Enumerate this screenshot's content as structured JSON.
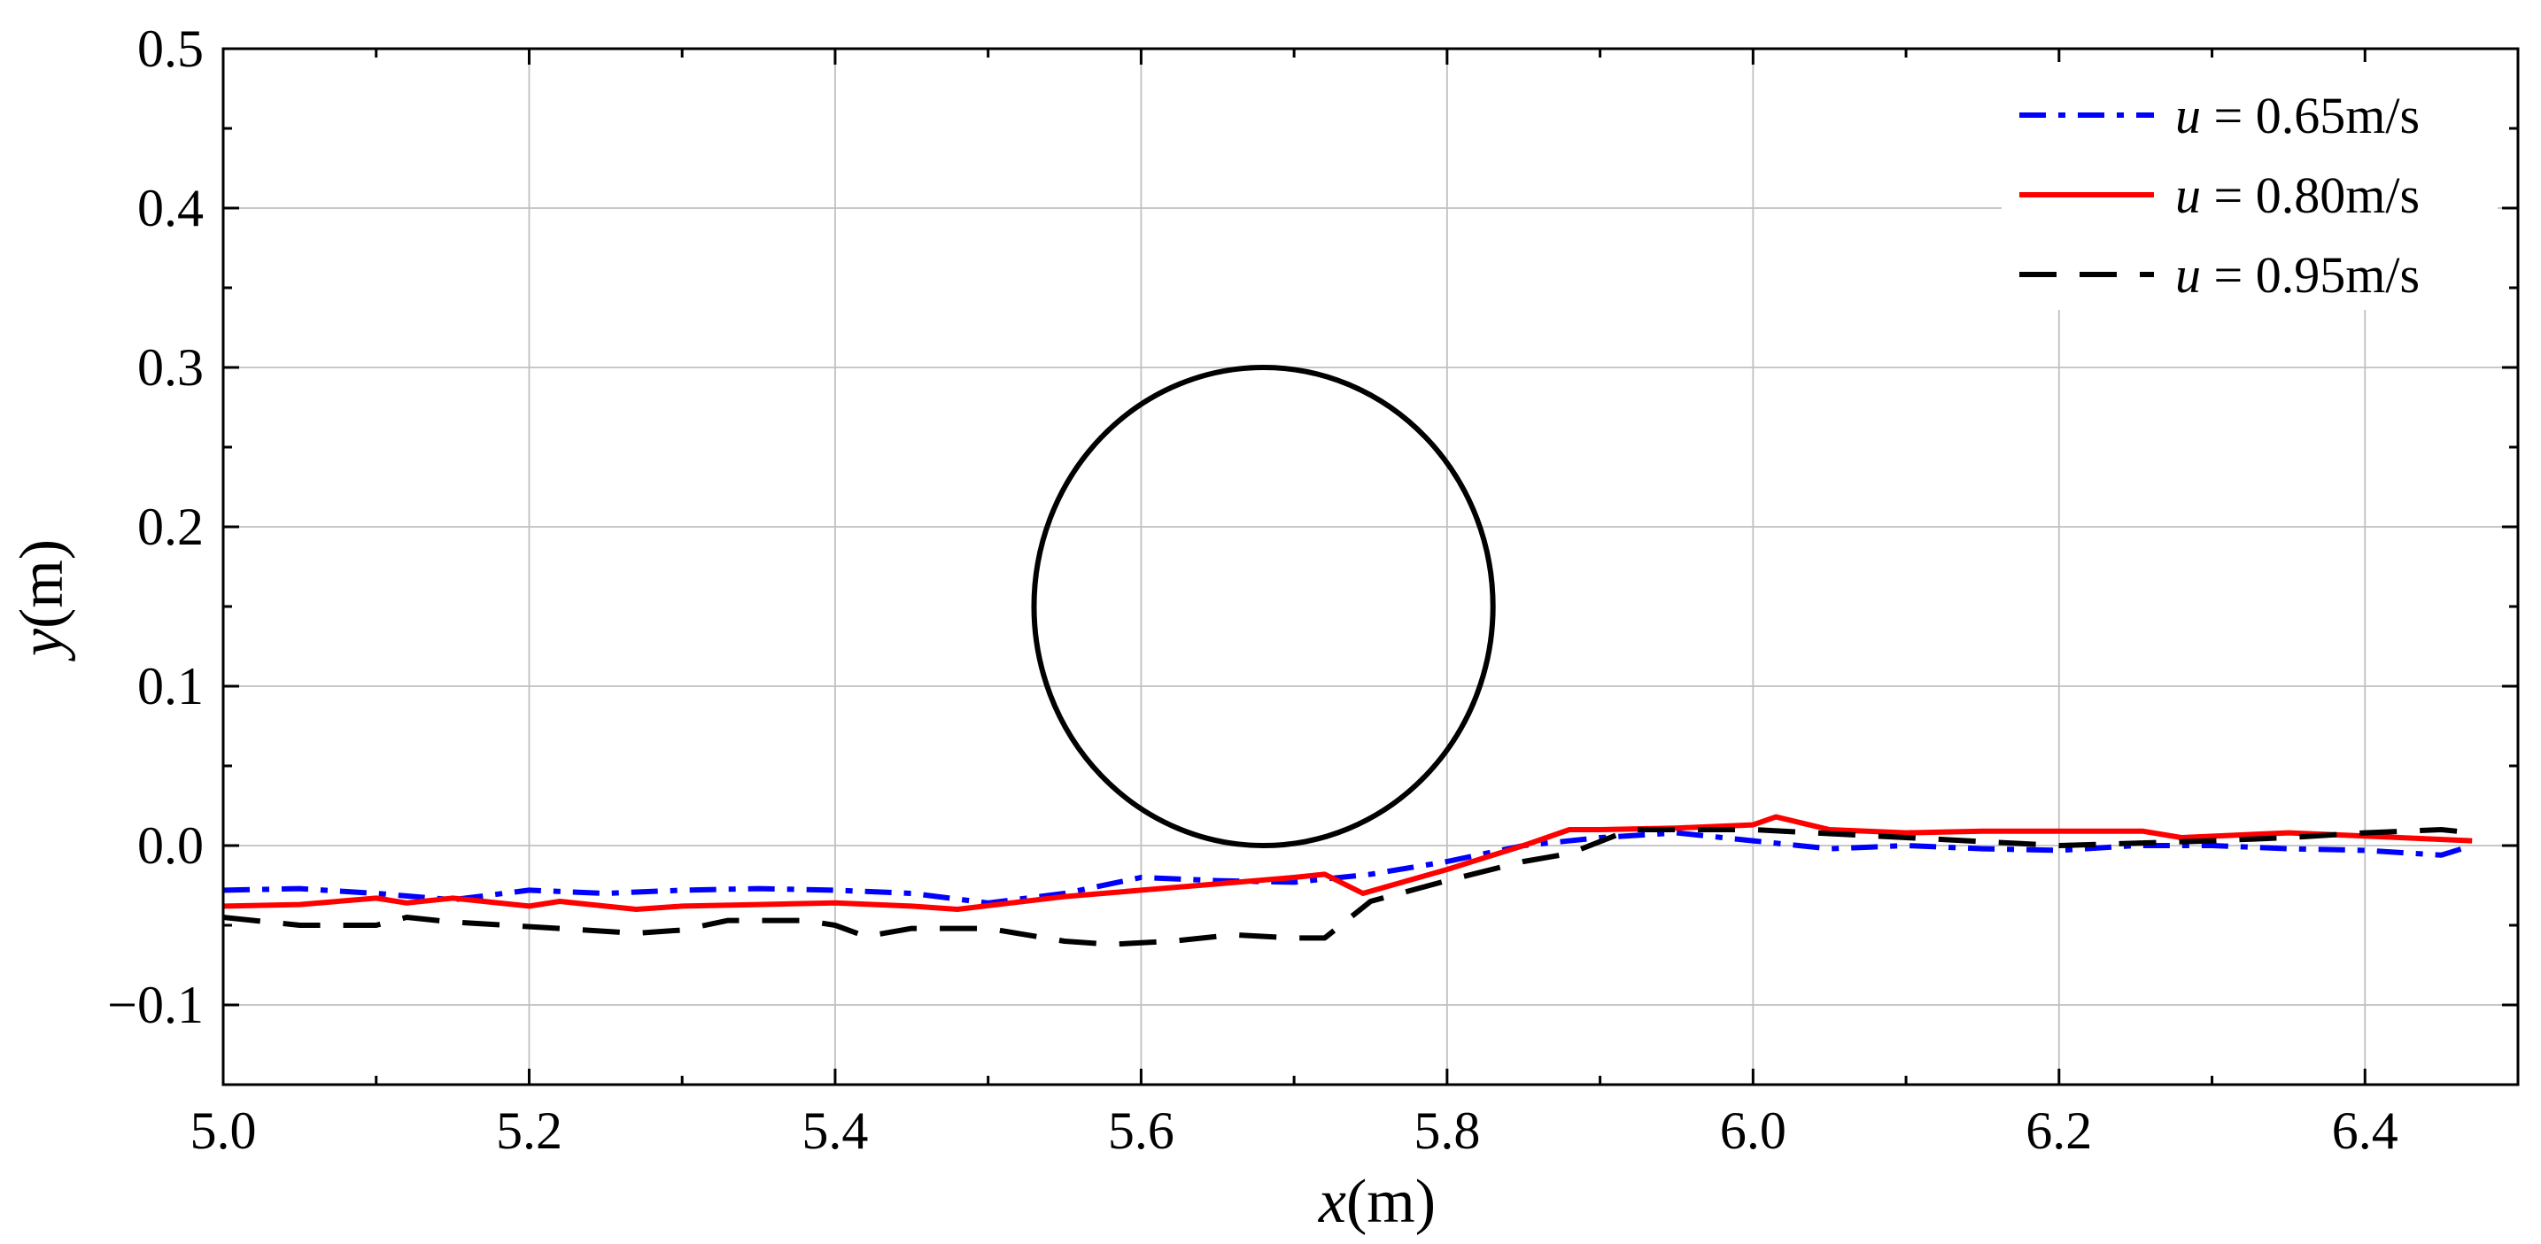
{
  "chart_data": {
    "type": "line",
    "xlabel_var": "x",
    "xlabel_unit": "(m)",
    "ylabel_var": "y",
    "ylabel_unit": "(m)",
    "xlim": [
      5.0,
      6.5
    ],
    "ylim": [
      -0.15,
      0.5
    ],
    "x_ticks": [
      5.0,
      5.2,
      5.4,
      5.6,
      5.8,
      6.0,
      6.2,
      6.4
    ],
    "x_tick_labels": [
      "5.0",
      "5.2",
      "5.4",
      "5.6",
      "5.8",
      "6.0",
      "6.2",
      "6.4"
    ],
    "y_ticks": [
      -0.1,
      0.0,
      0.1,
      0.2,
      0.3,
      0.4,
      0.5
    ],
    "y_tick_labels": [
      "−0.1",
      "0.0",
      "0.1",
      "0.2",
      "0.3",
      "0.4",
      "0.5"
    ],
    "grid": true,
    "legend_position": "top-right",
    "circle": {
      "cx": 5.68,
      "cy": 0.15,
      "r": 0.15,
      "color": "#000000"
    },
    "series": [
      {
        "name_var": "u",
        "name_value": " = 0.65m/s",
        "color": "#0000ff",
        "style": "dashdot",
        "x": [
          5.0,
          5.05,
          5.1,
          5.15,
          5.2,
          5.25,
          5.3,
          5.35,
          5.4,
          5.45,
          5.5,
          5.55,
          5.6,
          5.65,
          5.7,
          5.75,
          5.8,
          5.85,
          5.9,
          5.95,
          6.0,
          6.05,
          6.1,
          6.15,
          6.2,
          6.25,
          6.3,
          6.35,
          6.4,
          6.45,
          6.47
        ],
        "y": [
          -0.028,
          -0.027,
          -0.03,
          -0.034,
          -0.028,
          -0.03,
          -0.028,
          -0.027,
          -0.028,
          -0.03,
          -0.036,
          -0.03,
          -0.02,
          -0.022,
          -0.023,
          -0.018,
          -0.01,
          0.0,
          0.005,
          0.008,
          0.003,
          -0.002,
          0.0,
          -0.002,
          -0.003,
          0.0,
          0.0,
          -0.002,
          -0.003,
          -0.006,
          0.0
        ]
      },
      {
        "name_var": "u",
        "name_value": " = 0.80m/s",
        "color": "#ff0000",
        "style": "solid",
        "x": [
          5.0,
          5.05,
          5.1,
          5.12,
          5.15,
          5.2,
          5.22,
          5.27,
          5.3,
          5.35,
          5.4,
          5.45,
          5.48,
          5.55,
          5.6,
          5.65,
          5.7,
          5.72,
          5.745,
          5.8,
          5.85,
          5.88,
          5.9,
          5.95,
          6.0,
          6.015,
          6.05,
          6.1,
          6.15,
          6.2,
          6.255,
          6.28,
          6.35,
          6.4,
          6.47
        ],
        "y": [
          -0.038,
          -0.037,
          -0.033,
          -0.036,
          -0.033,
          -0.038,
          -0.035,
          -0.04,
          -0.038,
          -0.037,
          -0.036,
          -0.038,
          -0.04,
          -0.032,
          -0.028,
          -0.024,
          -0.02,
          -0.018,
          -0.03,
          -0.015,
          0.0,
          0.01,
          0.01,
          0.011,
          0.013,
          0.018,
          0.01,
          0.008,
          0.009,
          0.009,
          0.009,
          0.005,
          0.008,
          0.006,
          0.003
        ]
      },
      {
        "name_var": "u",
        "name_value": " = 0.95m/s",
        "color": "#000000",
        "style": "dashed",
        "x": [
          5.0,
          5.05,
          5.1,
          5.12,
          5.15,
          5.22,
          5.27,
          5.3,
          5.33,
          5.36,
          5.38,
          5.4,
          5.42,
          5.45,
          5.5,
          5.55,
          5.58,
          5.62,
          5.66,
          5.7,
          5.72,
          5.75,
          5.8,
          5.85,
          5.88,
          5.92,
          6.0,
          6.1,
          6.2,
          6.3,
          6.35,
          6.4,
          6.45,
          6.47
        ],
        "y": [
          -0.045,
          -0.05,
          -0.05,
          -0.045,
          -0.048,
          -0.052,
          -0.055,
          -0.053,
          -0.047,
          -0.047,
          -0.047,
          -0.05,
          -0.057,
          -0.052,
          -0.052,
          -0.06,
          -0.062,
          -0.06,
          -0.056,
          -0.058,
          -0.058,
          -0.035,
          -0.022,
          -0.01,
          -0.005,
          0.01,
          0.01,
          0.005,
          0.0,
          0.003,
          0.005,
          0.008,
          0.01,
          0.008
        ]
      }
    ]
  }
}
